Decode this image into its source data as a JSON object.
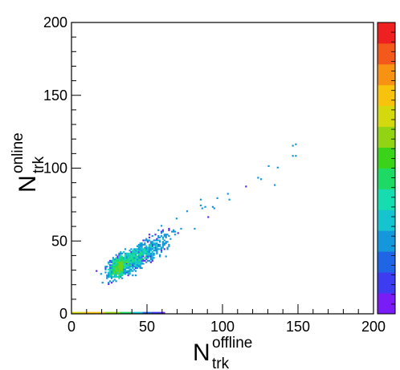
{
  "chart_data": {
    "type": "heatmap",
    "title": "",
    "xlabel": {
      "main": "N",
      "superscript": "offline",
      "subscript": "trk"
    },
    "ylabel": {
      "main": "N",
      "superscript": "online",
      "subscript": "trk"
    },
    "xlim": [
      0,
      200
    ],
    "ylim": [
      0,
      200
    ],
    "x_ticks": [
      0,
      50,
      100,
      150,
      200
    ],
    "y_ticks": [
      0,
      50,
      100,
      150,
      200
    ],
    "x_tick_labels": [
      "0",
      "50",
      "100",
      "150",
      "200"
    ],
    "y_tick_labels": [
      "0",
      "50",
      "100",
      "150",
      "200"
    ],
    "grid": false,
    "log_color_scale": true,
    "colorbar": {
      "position": "right",
      "colors": [
        "#7a1cf5",
        "#3d3cf0",
        "#1f66e6",
        "#1597dc",
        "#16c4cf",
        "#17dcb0",
        "#1ed964",
        "#3bd31a",
        "#92d414",
        "#d4d90f",
        "#f7c30c",
        "#f79213",
        "#f4591c",
        "#ee2020"
      ]
    },
    "band": {
      "description_none": "",
      "ridge": [
        [
          12,
          22
        ],
        [
          20,
          27
        ],
        [
          30,
          32
        ],
        [
          40,
          37
        ],
        [
          50,
          43
        ],
        [
          60,
          49
        ],
        [
          70,
          56
        ],
        [
          80,
          63
        ],
        [
          90,
          70
        ],
        [
          100,
          77
        ],
        [
          110,
          84
        ],
        [
          120,
          91
        ],
        [
          130,
          98
        ],
        [
          140,
          105
        ],
        [
          150,
          112
        ]
      ],
      "peak": [
        35,
        33
      ],
      "colors": [
        "#7a1cf5",
        "#5a2cf3",
        "#3d3cf0",
        "#1f66e6",
        "#1597dc",
        "#16c4cf",
        "#17dcb0",
        "#1ed964",
        "#6dd418"
      ]
    },
    "baseline_row": {
      "y": 0,
      "segments": [
        {
          "x0": 0,
          "x1": 8,
          "color": "#d4d90f"
        },
        {
          "x0": 8,
          "x1": 22,
          "color": "#f7c30c"
        },
        {
          "x0": 22,
          "x1": 32,
          "color": "#92d414"
        },
        {
          "x0": 32,
          "x1": 40,
          "color": "#1ed964"
        },
        {
          "x0": 40,
          "x1": 47,
          "color": "#16c4cf"
        },
        {
          "x0": 47,
          "x1": 53,
          "color": "#1f66e6"
        },
        {
          "x0": 53,
          "x1": 60,
          "color": "#3d3cf0"
        },
        {
          "x0": 60,
          "x1": 62,
          "color": "#7a1cf5"
        }
      ]
    }
  }
}
